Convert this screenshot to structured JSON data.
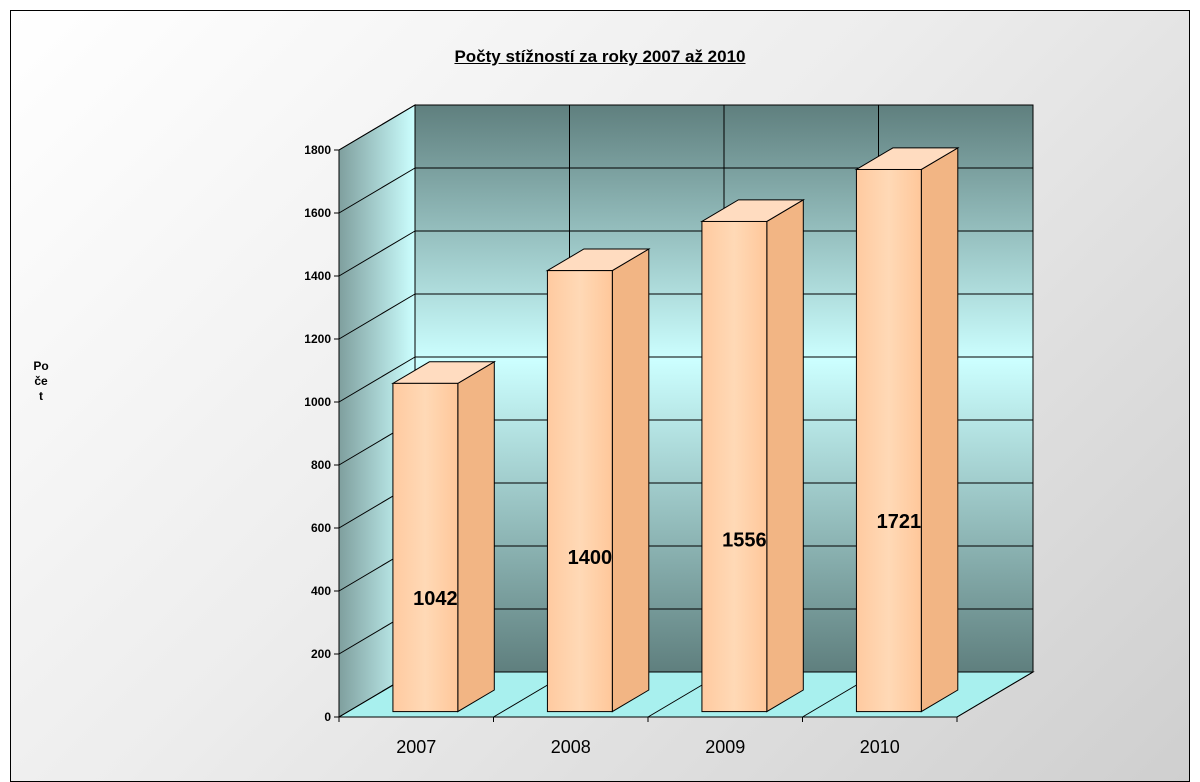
{
  "chart_data": {
    "type": "bar",
    "title": "Počty stížností za roky 2007 až 2010",
    "xlabel": "",
    "ylabel": "Počet",
    "categories": [
      "2007",
      "2008",
      "2009",
      "2010"
    ],
    "values": [
      1042,
      1400,
      1556,
      1721
    ],
    "data_labels": [
      "1042",
      "1400",
      "1556",
      "1721"
    ],
    "ylim": [
      0,
      1800
    ],
    "yticks": [
      0,
      200,
      400,
      600,
      800,
      1000,
      1200,
      1400,
      1600,
      1800
    ],
    "grid": true,
    "legend": "none",
    "style": "3d-column"
  },
  "colors": {
    "bar_front": "#ffc9a0",
    "bar_side": "#f2b584",
    "bar_top": "#ffdcc0",
    "wall_top": "#5f7f7e",
    "wall_mid": "#ccffff",
    "wall_bottom": "#5f7f7e",
    "floor": "#a8f0ee"
  }
}
